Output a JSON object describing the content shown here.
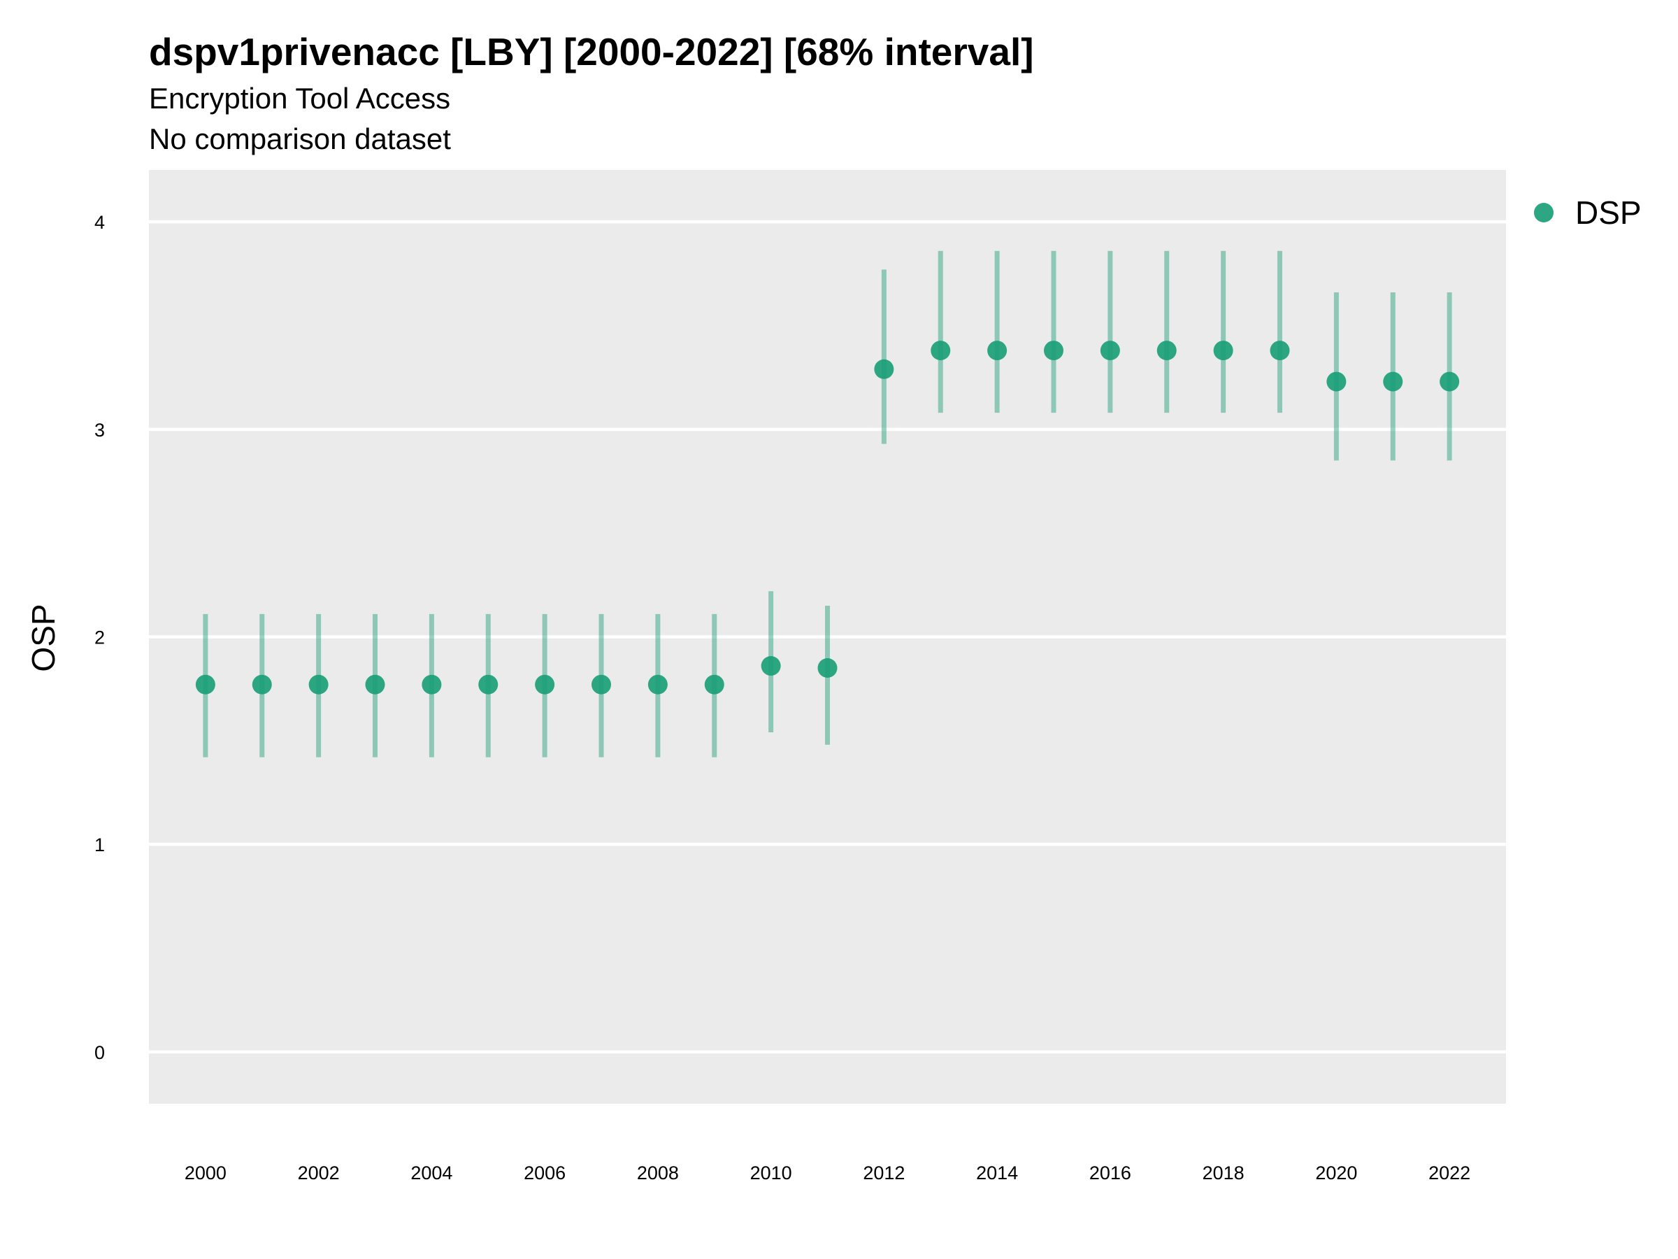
{
  "title": "dspv1privenacc [LBY] [2000-2022] [68% interval]",
  "subtitle_1": "Encryption Tool Access",
  "subtitle_2": "No comparison dataset",
  "chart_data": {
    "type": "scatter",
    "title": "dspv1privenacc [LBY] [2000-2022] [68% interval]",
    "subtitle": [
      "Encryption Tool Access",
      "No comparison dataset"
    ],
    "xlabel": "",
    "ylabel": "OSP",
    "x": [
      2000,
      2001,
      2002,
      2003,
      2004,
      2005,
      2006,
      2007,
      2008,
      2009,
      2010,
      2011,
      2012,
      2013,
      2014,
      2015,
      2016,
      2017,
      2018,
      2019,
      2020,
      2021,
      2022
    ],
    "xlim": [
      1999,
      2023
    ],
    "ylim": [
      -0.25,
      4.25
    ],
    "x_ticks": [
      2000,
      2002,
      2004,
      2006,
      2008,
      2010,
      2012,
      2014,
      2016,
      2018,
      2020,
      2022
    ],
    "y_ticks": [
      0,
      1,
      2,
      3,
      4
    ],
    "grid": true,
    "legend_position": "right",
    "series": [
      {
        "name": "DSP",
        "color": "#1b9e77",
        "values": [
          1.77,
          1.77,
          1.77,
          1.77,
          1.77,
          1.77,
          1.77,
          1.77,
          1.77,
          1.77,
          1.86,
          1.85,
          3.29,
          3.38,
          3.38,
          3.38,
          3.38,
          3.38,
          3.38,
          3.38,
          3.23,
          3.23,
          3.23
        ],
        "lower": [
          1.42,
          1.42,
          1.42,
          1.42,
          1.42,
          1.42,
          1.42,
          1.42,
          1.42,
          1.42,
          1.54,
          1.48,
          2.93,
          3.08,
          3.08,
          3.08,
          3.08,
          3.08,
          3.08,
          3.08,
          2.85,
          2.85,
          2.85
        ],
        "upper": [
          2.11,
          2.11,
          2.11,
          2.11,
          2.11,
          2.11,
          2.11,
          2.11,
          2.11,
          2.11,
          2.22,
          2.15,
          3.77,
          3.86,
          3.86,
          3.86,
          3.86,
          3.86,
          3.86,
          3.86,
          3.66,
          3.66,
          3.66
        ]
      }
    ]
  }
}
